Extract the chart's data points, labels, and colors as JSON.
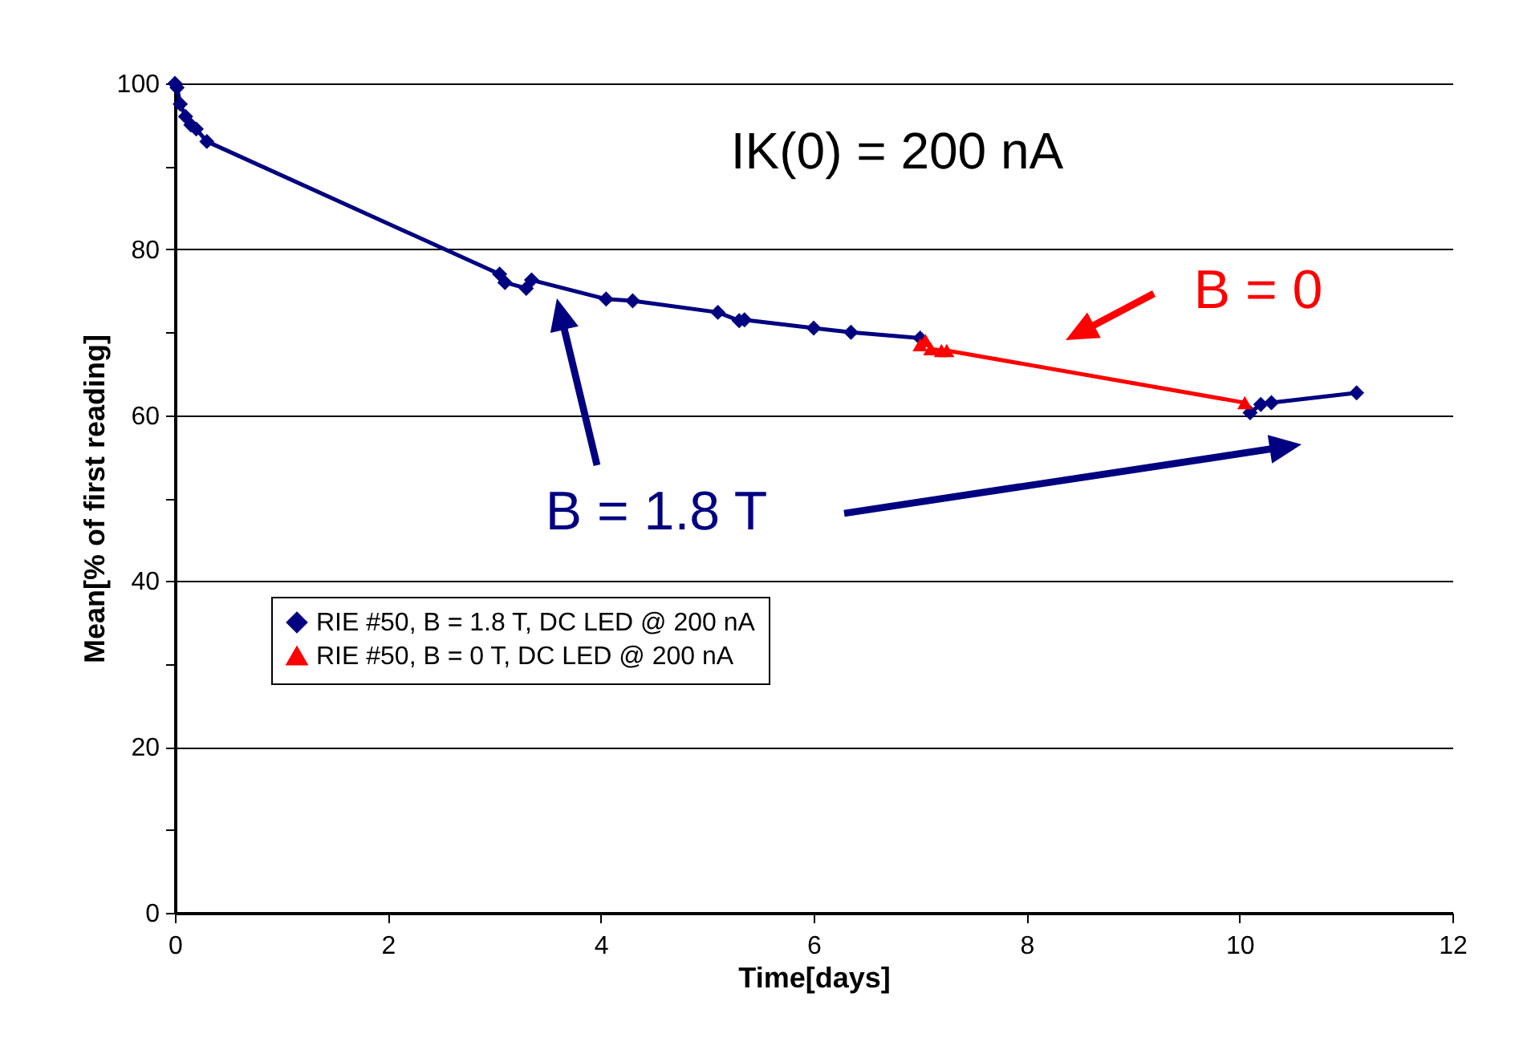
{
  "chart_data": {
    "type": "line",
    "xlabel": "Time[days]",
    "ylabel": "Mean[% of first reading]",
    "xlim": [
      0,
      12
    ],
    "xticks": [
      0,
      2,
      4,
      6,
      8,
      10,
      12
    ],
    "ylim": [
      0,
      100
    ],
    "yticks": [
      0,
      {
        "value": 10,
        "label": null
      },
      20,
      {
        "value": 30,
        "label": null
      },
      40,
      {
        "value": 50,
        "label": null
      },
      60,
      {
        "value": 70,
        "label": null
      },
      80,
      {
        "value": 90,
        "label": null
      },
      100
    ],
    "grid": "y",
    "legend": "left",
    "line_style": "solid",
    "annotations": [
      "IK(0) = 200 nA",
      "B = 0",
      "B = 1.8 T"
    ],
    "series": [
      {
        "name": "RIE #50, B = 1.8 T, DC LED @ 200 nA",
        "color": "#000080",
        "marker": "diamond",
        "x": [
          0,
          0.02,
          0.05,
          0.1,
          0.15,
          0.2,
          0.3,
          3.05,
          3.1,
          3.3,
          3.35,
          4.05,
          4.3,
          5.1,
          5.3,
          5.35,
          6.0,
          6.35,
          7.0,
          8.5,
          10.1,
          10.2,
          10.3,
          11.1
        ],
        "values": [
          100,
          99.5,
          97.5,
          96,
          95,
          94.5,
          93,
          77,
          76,
          75.3,
          76.3,
          74,
          73.8,
          72.4,
          71.4,
          71.5,
          70.5,
          70,
          69.3,
          null,
          60.3,
          61.3,
          61.5,
          62.7
        ]
      },
      {
        "name": "RIE #50, B = 0 T, DC LED @ 200 nA",
        "color": "#ff0000",
        "marker": "triangle",
        "x": [
          7.0,
          7.05,
          7.1,
          7.2,
          7.25,
          10.05
        ],
        "values": [
          68.5,
          69,
          68,
          67.8,
          67.8,
          61.5
        ]
      }
    ]
  }
}
